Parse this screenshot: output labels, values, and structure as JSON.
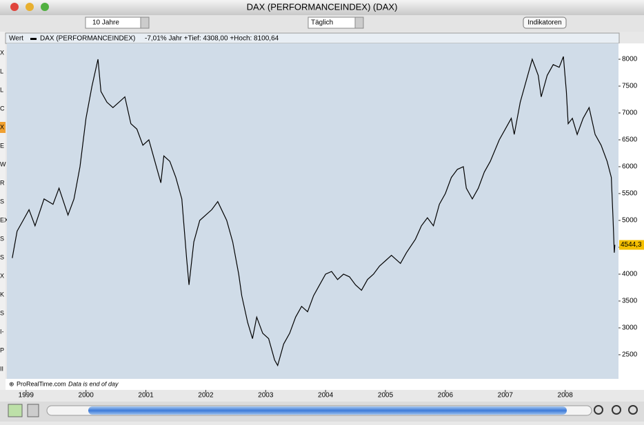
{
  "window": {
    "title": "DAX (PERFORMANCEINDEX) (DAX)"
  },
  "toolbar": {
    "period": "10 Jahre",
    "interval": "Täglich",
    "button": "Indikatoren"
  },
  "sidebar": {
    "items": [
      "X",
      "L",
      "L",
      "C",
      "X",
      "E",
      "W",
      "R",
      "S",
      "EX",
      "S",
      "S",
      "X",
      "K",
      "S",
      "I-",
      "P",
      "II"
    ]
  },
  "chart_data": {
    "type": "line",
    "header_label": "Wert",
    "stats": "-7,01%  Jahr +Tief: 4308,00 +Hoch: 8100,64",
    "footer_source": "ProRealTime.com",
    "footer_note": "Data is end of day",
    "x": [
      1998.77,
      1998.85,
      1998.95,
      1999.05,
      1999.15,
      1999.3,
      1999.45,
      1999.55,
      1999.7,
      1999.8,
      1999.9,
      2000.0,
      2000.1,
      2000.2,
      2000.25,
      2000.35,
      2000.45,
      2000.55,
      2000.65,
      2000.75,
      2000.85,
      2000.95,
      2001.05,
      2001.15,
      2001.25,
      2001.3,
      2001.4,
      2001.5,
      2001.6,
      2001.68,
      2001.72,
      2001.8,
      2001.9,
      2002.0,
      2002.1,
      2002.2,
      2002.35,
      2002.45,
      2002.55,
      2002.6,
      2002.7,
      2002.78,
      2002.85,
      2002.95,
      2003.05,
      2003.15,
      2003.2,
      2003.3,
      2003.4,
      2003.5,
      2003.6,
      2003.7,
      2003.8,
      2003.9,
      2004.0,
      2004.1,
      2004.2,
      2004.3,
      2004.4,
      2004.5,
      2004.6,
      2004.7,
      2004.8,
      2004.9,
      2005.0,
      2005.1,
      2005.25,
      2005.35,
      2005.5,
      2005.6,
      2005.7,
      2005.8,
      2005.9,
      2006.0,
      2006.1,
      2006.2,
      2006.3,
      2006.35,
      2006.45,
      2006.55,
      2006.65,
      2006.75,
      2006.9,
      2007.0,
      2007.1,
      2007.15,
      2007.25,
      2007.35,
      2007.45,
      2007.55,
      2007.6,
      2007.7,
      2007.8,
      2007.9,
      2007.97,
      2008.02,
      2008.05,
      2008.12,
      2008.2,
      2008.3,
      2008.4,
      2008.5,
      2008.6,
      2008.7,
      2008.77,
      2008.8,
      2008.82,
      2008.83
    ],
    "series": [
      {
        "name": "DAX (PERFORMANCEINDEX)",
        "color": "#000000",
        "values": [
          4300,
          4800,
          5000,
          5200,
          4900,
          5400,
          5300,
          5600,
          5100,
          5400,
          6000,
          6900,
          7500,
          8000,
          7400,
          7200,
          7100,
          7200,
          7300,
          6800,
          6700,
          6400,
          6500,
          6100,
          5700,
          6200,
          6100,
          5800,
          5400,
          4300,
          3800,
          4600,
          5000,
          5100,
          5200,
          5350,
          5000,
          4600,
          4000,
          3600,
          3100,
          2800,
          3200,
          2900,
          2800,
          2400,
          2300,
          2700,
          2900,
          3200,
          3400,
          3300,
          3600,
          3800,
          4000,
          4050,
          3900,
          4000,
          3950,
          3800,
          3700,
          3900,
          4000,
          4150,
          4250,
          4350,
          4200,
          4400,
          4650,
          4900,
          5050,
          4900,
          5300,
          5500,
          5800,
          5950,
          6000,
          5600,
          5400,
          5600,
          5900,
          6100,
          6500,
          6700,
          6900,
          6600,
          7200,
          7600,
          8000,
          7700,
          7300,
          7700,
          7900,
          7850,
          8050,
          7400,
          6800,
          6900,
          6600,
          6900,
          7100,
          6600,
          6400,
          6100,
          5800,
          5000,
          4400,
          4544.3
        ]
      }
    ],
    "current": {
      "value": 4544.3,
      "label": "4544,3"
    },
    "xlim": [
      1998.68,
      2008.89
    ],
    "xticks": [
      1999,
      2000,
      2001,
      2002,
      2003,
      2004,
      2005,
      2006,
      2007,
      2008
    ],
    "ylim": [
      2051,
      8295
    ],
    "yticks": [
      2500,
      3000,
      3500,
      4000,
      4500,
      5000,
      5500,
      6000,
      6500,
      7000,
      7500,
      8000
    ],
    "grid": false
  }
}
